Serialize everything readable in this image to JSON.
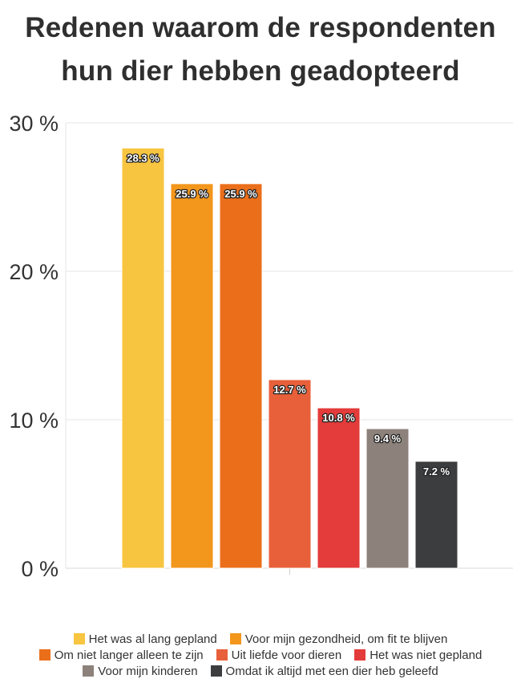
{
  "chart_data": {
    "type": "bar",
    "title_lines": [
      "Redenen waarom de respondenten",
      "hun dier hebben geadopteerd"
    ],
    "xlabel": "",
    "ylabel": "",
    "ylim": [
      0,
      30
    ],
    "yticks": [
      0,
      10,
      20,
      30
    ],
    "ytick_labels": [
      "0 %",
      "10 %",
      "20 %",
      "30 %"
    ],
    "grid": true,
    "legend_position": "bottom",
    "categories": [
      "Het was al lang gepland",
      "Voor mijn gezondheid, om fit te blijven",
      "Om niet langer alleen te zijn",
      "Uit liefde voor dieren",
      "Het was niet gepland",
      "Voor mijn kinderen",
      "Omdat ik altijd met een dier heb geleefd"
    ],
    "values": [
      28.3,
      25.9,
      25.9,
      12.7,
      10.8,
      9.4,
      7.2
    ],
    "value_labels": [
      "28.3 %",
      "25.9 %",
      "25.9 %",
      "12.7 %",
      "10.8 %",
      "9.4 %",
      "7.2 %"
    ],
    "colors": [
      "#F8C541",
      "#F3961C",
      "#EB6F1B",
      "#E8603A",
      "#E33C3A",
      "#8D827B",
      "#3B3D3F"
    ]
  }
}
